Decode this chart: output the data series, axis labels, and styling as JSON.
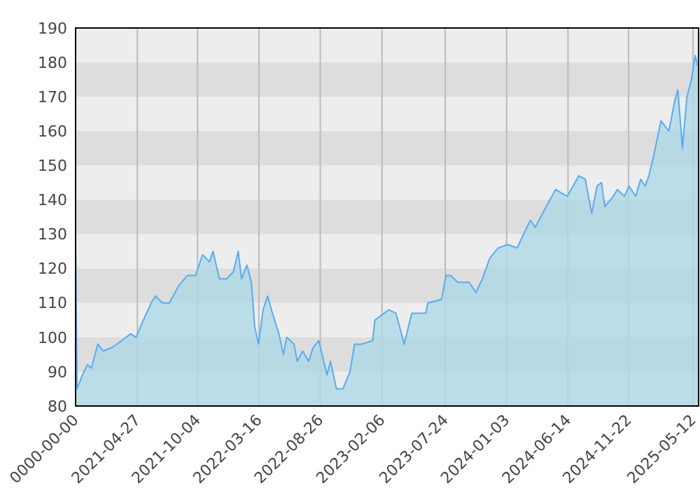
{
  "chart_data": {
    "type": "area",
    "x": [
      "2020-11-14",
      "2020-11-18",
      "2020-12-02",
      "2020-12-15",
      "2020-12-26",
      "2021-01-12",
      "2021-01-26",
      "2021-02-19",
      "2021-03-16",
      "2021-04-09",
      "2021-04-24",
      "2021-05-09",
      "2021-06-03",
      "2021-06-14",
      "2021-07-03",
      "2021-07-21",
      "2021-08-15",
      "2021-09-07",
      "2021-09-29",
      "2021-10-17",
      "2021-11-05",
      "2021-11-14",
      "2021-12-01",
      "2021-12-20",
      "2022-01-07",
      "2022-01-20",
      "2022-01-29",
      "2022-02-12",
      "2022-02-24",
      "2022-03-05",
      "2022-03-15",
      "2022-03-27",
      "2022-04-08",
      "2022-04-21",
      "2022-05-08",
      "2022-05-20",
      "2022-05-29",
      "2022-06-17",
      "2022-06-26",
      "2022-07-10",
      "2022-07-26",
      "2022-08-07",
      "2022-08-22",
      "2022-09-13",
      "2022-09-22",
      "2022-10-08",
      "2022-10-25",
      "2022-11-13",
      "2022-11-25",
      "2022-12-14",
      "2023-01-12",
      "2023-01-18",
      "2023-02-24",
      "2023-03-15",
      "2023-04-06",
      "2023-04-26",
      "2023-06-02",
      "2023-06-08",
      "2023-07-14",
      "2023-07-26",
      "2023-08-07",
      "2023-08-26",
      "2023-09-26",
      "2023-10-13",
      "2023-10-31",
      "2023-11-19",
      "2023-12-12",
      "2024-01-06",
      "2024-01-31",
      "2024-02-17",
      "2024-03-06",
      "2024-03-19",
      "2024-04-12",
      "2024-05-12",
      "2024-06-12",
      "2024-07-13",
      "2024-07-30",
      "2024-08-16",
      "2024-08-30",
      "2024-09-11",
      "2024-09-20",
      "2024-10-12",
      "2024-10-23",
      "2024-11-11",
      "2024-11-23",
      "2024-12-11",
      "2024-12-24",
      "2025-01-05",
      "2025-01-15",
      "2025-01-28",
      "2025-02-16",
      "2025-03-09",
      "2025-03-25",
      "2025-04-02",
      "2025-04-14",
      "2025-04-26",
      "2025-05-08",
      "2025-05-18",
      "2025-05-25"
    ],
    "series": [
      {
        "color": "#5aabf0",
        "values": [
          130,
          85,
          89,
          92,
          91,
          98,
          96,
          97,
          99,
          101,
          100,
          104,
          110,
          112,
          110,
          110,
          115,
          118,
          118,
          124,
          122,
          125,
          117,
          117,
          119,
          125,
          117,
          121,
          116,
          103,
          98,
          108,
          112,
          107,
          101,
          95,
          100,
          98,
          93,
          96,
          93,
          97,
          99,
          89,
          93,
          85,
          85,
          90,
          98,
          98,
          99,
          105,
          108,
          107,
          98,
          107,
          107,
          110,
          111,
          118,
          118,
          116,
          116,
          113,
          117,
          123,
          126,
          127,
          126,
          130,
          134,
          132,
          137,
          143,
          141,
          147,
          146,
          136,
          144,
          145,
          138,
          141,
          143,
          141,
          144,
          141,
          146,
          144,
          147,
          153,
          163,
          160,
          169,
          172,
          155,
          170,
          175,
          182,
          179
        ]
      }
    ],
    "xlim": [
      "2020-11-14",
      "2025-05-27"
    ],
    "xticks": [
      {
        "value": "2020-11-14",
        "label": "0000-00-00"
      },
      "2021-04-27",
      "2021-10-04",
      "2022-03-16",
      "2022-08-26",
      "2023-02-06",
      "2023-07-24",
      "2024-01-03",
      "2024-06-14",
      "2024-11-22",
      "2025-05-12"
    ],
    "ylim": [
      80,
      190
    ],
    "yticks": [
      80,
      90,
      100,
      110,
      120,
      130,
      140,
      150,
      160,
      170,
      180,
      190
    ],
    "grid": true
  }
}
